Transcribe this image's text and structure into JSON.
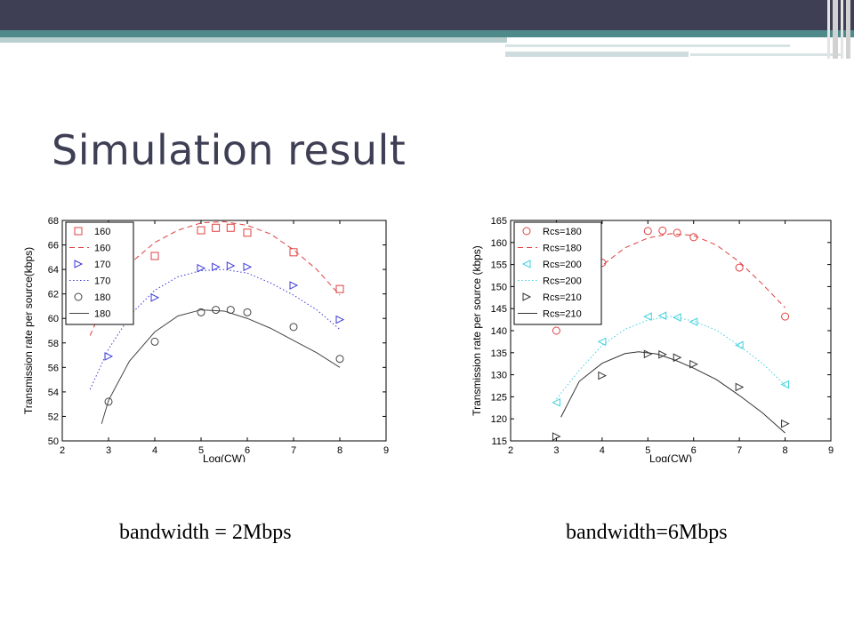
{
  "slide": {
    "title": "Simulation result",
    "captions": [
      "bandwidth = 2Mbps",
      "bandwidth=6Mbps"
    ]
  },
  "chart_data": [
    {
      "type": "scatter",
      "title": "",
      "xlabel": "Log(CW)",
      "ylabel": "Transmission rate per source(kbps)",
      "xlim": [
        2,
        9
      ],
      "ylim": [
        50,
        68
      ],
      "xticks": [
        2,
        3,
        4,
        5,
        6,
        7,
        8,
        9
      ],
      "yticks": [
        50,
        52,
        54,
        56,
        58,
        60,
        62,
        64,
        66,
        68
      ],
      "legend_position": "top-left",
      "series": [
        {
          "name": "160",
          "style": "marker",
          "marker": "square",
          "color": "#e04040",
          "x": [
            3,
            4,
            5,
            5.32,
            5.64,
            6,
            7,
            8
          ],
          "y": [
            60.2,
            65.1,
            67.2,
            67.4,
            67.4,
            67.0,
            65.4,
            62.4
          ]
        },
        {
          "name": "160",
          "style": "dashed",
          "color": "#e04040",
          "x": [
            2.6,
            3,
            3.5,
            4,
            4.5,
            5,
            5.5,
            6,
            6.5,
            7,
            7.5,
            8
          ],
          "y": [
            58.6,
            62.0,
            64.6,
            66.2,
            67.2,
            67.8,
            67.9,
            67.6,
            66.9,
            65.6,
            64.0,
            61.9
          ]
        },
        {
          "name": "170",
          "style": "marker",
          "marker": "triangle-right",
          "color": "#3a3ad8",
          "x": [
            3,
            4,
            5,
            5.32,
            5.64,
            6,
            7,
            8
          ],
          "y": [
            56.9,
            61.7,
            64.1,
            64.2,
            64.3,
            64.2,
            62.7,
            59.9
          ]
        },
        {
          "name": "170",
          "style": "dotted",
          "color": "#3a3ad8",
          "x": [
            2.6,
            3,
            3.5,
            4,
            4.5,
            5,
            5.5,
            6,
            6.5,
            7,
            7.5,
            8
          ],
          "y": [
            54.2,
            57.5,
            60.4,
            62.3,
            63.4,
            63.9,
            64.0,
            63.7,
            62.9,
            61.9,
            60.7,
            59.1
          ]
        },
        {
          "name": "180",
          "style": "marker",
          "marker": "circle",
          "color": "#444444",
          "x": [
            3,
            4,
            5,
            5.32,
            5.64,
            6,
            7,
            8
          ],
          "y": [
            53.2,
            58.1,
            60.5,
            60.7,
            60.7,
            60.5,
            59.3,
            56.7
          ]
        },
        {
          "name": "180",
          "style": "solid",
          "color": "#444444",
          "x": [
            2.85,
            3,
            3.45,
            4,
            4.5,
            5,
            5.5,
            6,
            6.5,
            7,
            7.5,
            8
          ],
          "y": [
            51.4,
            53.3,
            56.5,
            58.9,
            60.2,
            60.7,
            60.6,
            60.0,
            59.2,
            58.2,
            57.2,
            56.0
          ]
        }
      ]
    },
    {
      "type": "scatter",
      "title": "",
      "xlabel": "Log(CW)",
      "ylabel": "Transmission rate per source (kbps)",
      "xlim": [
        2,
        9
      ],
      "ylim": [
        115,
        165
      ],
      "xticks": [
        2,
        3,
        4,
        5,
        6,
        7,
        8,
        9
      ],
      "yticks": [
        115,
        120,
        125,
        130,
        135,
        140,
        145,
        150,
        155,
        160,
        165
      ],
      "legend_position": "top-left",
      "series": [
        {
          "name": "Rcs=180",
          "style": "marker",
          "marker": "circle",
          "color": "#e04040",
          "x": [
            3,
            4,
            5,
            5.32,
            5.64,
            6,
            7,
            8
          ],
          "y": [
            140.0,
            155.4,
            162.6,
            162.7,
            162.2,
            161.2,
            154.3,
            143.2
          ]
        },
        {
          "name": "Rcs=180",
          "style": "dashed",
          "color": "#e04040",
          "x": [
            3,
            3.5,
            4,
            4.5,
            5,
            5.5,
            6,
            6.5,
            7,
            7.5,
            8
          ],
          "y": [
            143.2,
            149.6,
            154.8,
            158.8,
            161.0,
            162.0,
            161.6,
            159.4,
            155.6,
            150.6,
            145.2
          ]
        },
        {
          "name": "Rcs=200",
          "style": "marker",
          "marker": "triangle-left",
          "color": "#3fd0e0",
          "x": [
            3,
            4,
            5,
            5.32,
            5.64,
            6,
            7,
            8
          ],
          "y": [
            123.7,
            137.5,
            143.2,
            143.4,
            143.0,
            142.0,
            136.7,
            127.8
          ]
        },
        {
          "name": "Rcs=200",
          "style": "dotted",
          "color": "#3fd0e0",
          "x": [
            3,
            3.5,
            4,
            4.5,
            5,
            5.5,
            6,
            6.5,
            7,
            7.5,
            8
          ],
          "y": [
            124.5,
            131.0,
            136.7,
            140.3,
            142.4,
            143.2,
            142.2,
            140.1,
            136.6,
            132.6,
            127.6
          ]
        },
        {
          "name": "Rcs=210",
          "style": "marker",
          "marker": "triangle-right",
          "color": "#333333",
          "x": [
            3,
            4,
            5,
            5.32,
            5.64,
            6,
            7,
            8
          ],
          "y": [
            116.0,
            129.8,
            134.7,
            134.6,
            133.9,
            132.4,
            127.2,
            118.9
          ]
        },
        {
          "name": "Rcs=210",
          "style": "solid",
          "color": "#333333",
          "x": [
            3.1,
            3.5,
            4,
            4.5,
            4.8,
            5.2,
            5.6,
            6,
            6.5,
            7,
            7.5,
            8
          ],
          "y": [
            120.4,
            128.5,
            132.6,
            134.8,
            135.2,
            134.7,
            133.3,
            131.5,
            128.9,
            125.3,
            121.4,
            116.8
          ]
        }
      ]
    }
  ]
}
